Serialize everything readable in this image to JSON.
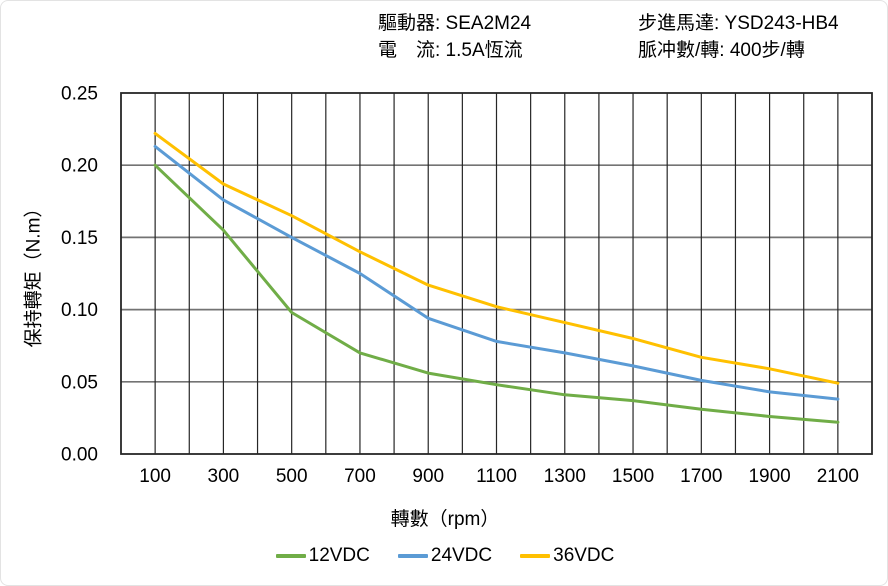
{
  "specs": {
    "driver": "驅動器: SEA2M24",
    "motor": "步進馬達: YSD243-HB4",
    "current": "電　流: 1.5A恆流",
    "pulses": "脈冲數/轉: 400步/轉"
  },
  "chart_data": {
    "type": "line",
    "title": "",
    "xlabel": "轉數（rpm）",
    "ylabel": "保持轉矩（N.m）",
    "x": [
      100,
      300,
      500,
      700,
      900,
      1100,
      1300,
      1500,
      1700,
      1900,
      2100
    ],
    "series": [
      {
        "name": "12VDC",
        "color": "#70AD47",
        "values": [
          0.2,
          0.155,
          0.098,
          0.07,
          0.056,
          0.048,
          0.041,
          0.037,
          0.031,
          0.026,
          0.022
        ]
      },
      {
        "name": "24VDC",
        "color": "#5B9BD5",
        "values": [
          0.213,
          0.176,
          0.15,
          0.125,
          0.094,
          0.078,
          0.07,
          0.061,
          0.051,
          0.043,
          0.038
        ]
      },
      {
        "name": "36VDC",
        "color": "#FFC000",
        "values": [
          0.222,
          0.187,
          0.165,
          0.14,
          0.117,
          0.102,
          0.091,
          0.08,
          0.067,
          0.059,
          0.049
        ]
      }
    ],
    "xlim": [
      0,
      2200
    ],
    "ylim": [
      0,
      0.25
    ],
    "x_ticks": [
      100,
      300,
      500,
      700,
      900,
      1100,
      1300,
      1500,
      1700,
      1900,
      2100
    ],
    "y_ticks": [
      {
        "value": 0.0,
        "label": "0.00"
      },
      {
        "value": 0.05,
        "label": "0.05"
      },
      {
        "value": 0.1,
        "label": "0.10"
      },
      {
        "value": 0.15,
        "label": "0.15"
      },
      {
        "value": 0.2,
        "label": "0.20"
      },
      {
        "value": 0.25,
        "label": "0.25"
      }
    ],
    "x_grid_step": 100,
    "y_grid_step": 0.05,
    "grid": true,
    "legend_position": "bottom",
    "style": {
      "h_grid_color": "#737373",
      "v_grid_color": "#262626",
      "border_color": "#262626",
      "text_color": "#000000",
      "line_width": 3
    }
  }
}
